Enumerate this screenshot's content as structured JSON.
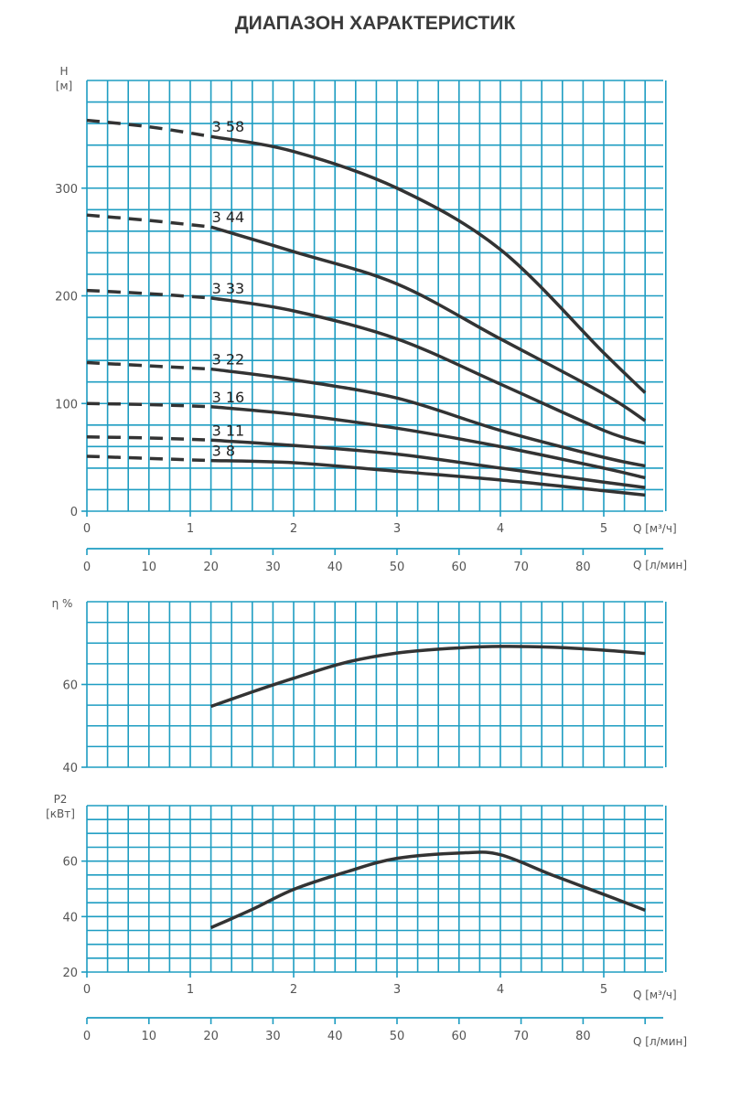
{
  "title": "ДИАПАЗОН ХАРАКТЕРИСТИК",
  "colors": {
    "grid": "#1e9dc2",
    "curve": "#333333",
    "text": "#555555"
  },
  "chart_data": [
    {
      "type": "line",
      "ylabel": "H",
      "yunit": "[м]",
      "xlabel": "Q [м³/ч]",
      "x2label": "Q [л/мин]",
      "xlim": [
        0,
        5.6
      ],
      "ylim": [
        0,
        400
      ],
      "xticks": [
        "0",
        "1",
        "2",
        "3",
        "4",
        "5"
      ],
      "x2ticks": [
        "0",
        "10",
        "20",
        "30",
        "40",
        "50",
        "60",
        "70",
        "80"
      ],
      "yticks": [
        "0",
        "100",
        "200",
        "300"
      ],
      "grid": true,
      "dashed_until_x": 1.2,
      "x": [
        0,
        0.6,
        1.2,
        2,
        3,
        4,
        5,
        5.4
      ],
      "series": [
        {
          "name": "3 58",
          "values": [
            363,
            357,
            348,
            334,
            300,
            243,
            147,
            110
          ]
        },
        {
          "name": "3 44",
          "values": [
            275,
            270,
            264,
            241,
            211,
            160,
            109,
            84
          ]
        },
        {
          "name": "3 33",
          "values": [
            205,
            202,
            198,
            186,
            160,
            118,
            75,
            63
          ]
        },
        {
          "name": "3 22",
          "values": [
            138,
            135,
            132,
            122,
            105,
            75,
            50,
            42
          ]
        },
        {
          "name": "3 16",
          "values": [
            100,
            99,
            97,
            90,
            77,
            60,
            40,
            31
          ]
        },
        {
          "name": "3 11",
          "values": [
            69,
            68,
            66,
            61,
            53,
            40,
            27,
            22
          ]
        },
        {
          "name": "3 8",
          "values": [
            51,
            49,
            47,
            45,
            37,
            29,
            19,
            15
          ]
        }
      ]
    },
    {
      "type": "line",
      "ylabel": "η %",
      "xlim": [
        0,
        5.6
      ],
      "ylim": [
        40,
        80
      ],
      "yticks": [
        "40",
        "60"
      ],
      "grid": true,
      "x": [
        1.2,
        1.6,
        2,
        2.5,
        3,
        3.5,
        4,
        4.5,
        5,
        5.4
      ],
      "values": [
        54.7,
        58.2,
        61.5,
        65.3,
        67.6,
        68.7,
        69.2,
        69.0,
        68.3,
        67.5
      ]
    },
    {
      "type": "line",
      "ylabel": "P2",
      "yunit": "[кВт]",
      "xlabel": "Q [м³/ч]",
      "x2label": "Q [л/мин]",
      "xlim": [
        0,
        5.6
      ],
      "ylim": [
        20,
        80
      ],
      "xticks": [
        "0",
        "1",
        "2",
        "3",
        "4",
        "5"
      ],
      "x2ticks": [
        "0",
        "10",
        "20",
        "30",
        "40",
        "50",
        "60",
        "70",
        "80"
      ],
      "yticks": [
        "20",
        "40",
        "60"
      ],
      "grid": true,
      "x": [
        1.2,
        1.6,
        2,
        2.5,
        3,
        3.65,
        4,
        4.5,
        5,
        5.4
      ],
      "values": [
        36,
        42.6,
        49.8,
        56,
        61,
        63,
        62.3,
        55,
        48,
        42.3
      ]
    }
  ]
}
